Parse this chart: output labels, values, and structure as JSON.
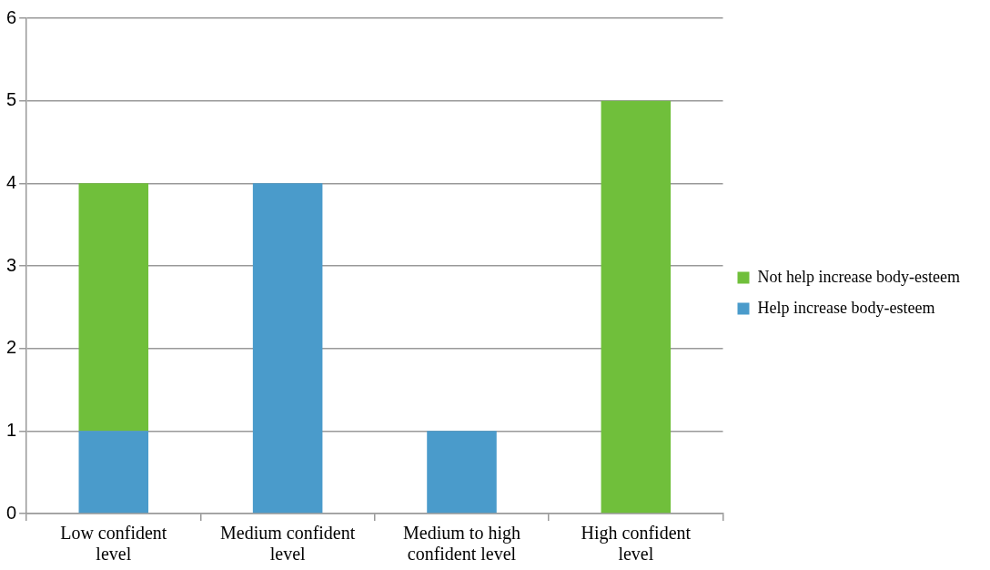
{
  "chart_data": {
    "type": "bar",
    "stacked": true,
    "categories": [
      "Low confident level",
      "Medium confident level",
      "Medium to high confident level",
      "High confident level"
    ],
    "series": [
      {
        "name": "Help increase body-esteem",
        "color": "#4a9bcb",
        "values": [
          1,
          4,
          1,
          0
        ]
      },
      {
        "name": "Not help increase body-esteem",
        "color": "#70bf3b",
        "values": [
          3,
          0,
          0,
          5
        ]
      }
    ],
    "ylim": [
      0,
      6
    ],
    "yticks": [
      0,
      1,
      2,
      3,
      4,
      5,
      6
    ],
    "grid": "y",
    "legend": "right"
  }
}
